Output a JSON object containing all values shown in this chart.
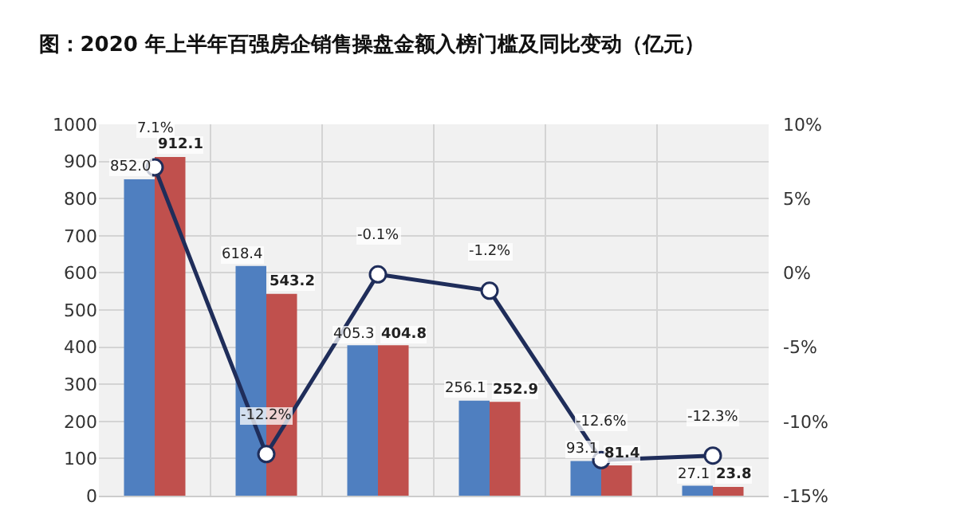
{
  "chart_data": {
    "type": "bar",
    "title": "图：2020 年上半年百强房企销售操盘金额入榜门槛及同比变动（亿元）",
    "categories": [
      null,
      null,
      null,
      null,
      null,
      null
    ],
    "series": [
      {
        "color": "#4f7fc0",
        "values": [
          852.0,
          618.4,
          405.3,
          256.1,
          93.1,
          27.1
        ],
        "value_labels": [
          "852.0",
          "618.4",
          "405.3",
          "256.1",
          "93.1",
          "27.1"
        ]
      },
      {
        "color": "#c0504d",
        "values": [
          912.1,
          543.2,
          404.8,
          252.9,
          81.4,
          23.8
        ],
        "value_labels": [
          "912.1",
          "543.2",
          "404.8",
          "252.9",
          "81.4",
          "23.8"
        ]
      },
      {
        "type": "line",
        "axis": "y2",
        "color": "#1f2d5a",
        "marker": "circle",
        "values": [
          7.1,
          -12.2,
          -0.1,
          -1.2,
          -12.6,
          -12.3
        ],
        "value_labels": [
          "7.1%",
          "-12.2%",
          "-0.1%",
          "-1.2%",
          "-12.6%",
          "-12.3%"
        ]
      }
    ],
    "ylim": [
      0,
      1000
    ],
    "yticks": [
      0,
      100,
      200,
      300,
      400,
      500,
      600,
      700,
      800,
      900,
      1000
    ],
    "y2lim": [
      -15,
      10
    ],
    "y2ticks": [
      {
        "value": -15,
        "label": "-15%"
      },
      {
        "value": -10,
        "label": "-10%"
      },
      {
        "value": -5,
        "label": "-5%"
      },
      {
        "value": 0,
        "label": "0%"
      },
      {
        "value": 5,
        "label": "5%"
      },
      {
        "value": 10,
        "label": "10%"
      }
    ],
    "grid": true
  }
}
